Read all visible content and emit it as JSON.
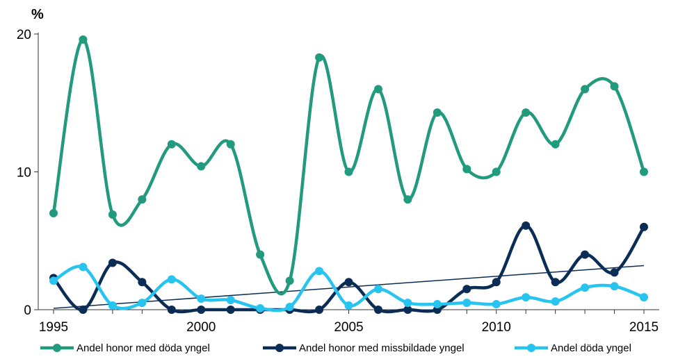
{
  "chart_data": {
    "type": "line",
    "unit_label": "%",
    "x": [
      1995,
      1996,
      1997,
      1998,
      1999,
      2000,
      2001,
      2002,
      2003,
      2004,
      2005,
      2006,
      2007,
      2008,
      2009,
      2010,
      2011,
      2012,
      2013,
      2014,
      2015
    ],
    "x_ticks": [
      "1995",
      "2000",
      "2005",
      "2010",
      "2015"
    ],
    "y_ticks": [
      "0",
      "10",
      "20"
    ],
    "xlim": [
      1995,
      2015
    ],
    "ylim": [
      0,
      20
    ],
    "grid": false,
    "legend_position": "bottom",
    "series": [
      {
        "name": "Andel honor med döda yngel",
        "color": "#219a7d",
        "values": [
          7.0,
          19.6,
          6.9,
          8.0,
          12.0,
          10.4,
          12.0,
          4.0,
          2.1,
          18.3,
          10.0,
          16.0,
          8.0,
          14.3,
          10.2,
          10.0,
          14.3,
          12.0,
          16.0,
          16.2,
          10.0
        ]
      },
      {
        "name": "Andel honor med missbildade yngel",
        "color": "#0b2d55",
        "values": [
          2.3,
          0.0,
          3.4,
          2.0,
          0.0,
          0.0,
          0.0,
          0.0,
          0.0,
          0.0,
          2.0,
          0.0,
          0.0,
          0.0,
          1.5,
          2.0,
          6.1,
          2.0,
          4.0,
          2.7,
          6.0
        ]
      },
      {
        "name": "Andel döda yngel",
        "color": "#27c4ef",
        "values": [
          2.1,
          3.1,
          0.3,
          0.5,
          2.2,
          0.8,
          0.7,
          0.1,
          0.2,
          2.8,
          0.3,
          1.5,
          0.5,
          0.4,
          0.5,
          0.4,
          0.9,
          0.6,
          1.6,
          1.7,
          0.9
        ]
      }
    ],
    "trendline": {
      "color": "#0b2d55",
      "start": 0.1,
      "end": 3.2
    },
    "axis_color": "#333333"
  }
}
